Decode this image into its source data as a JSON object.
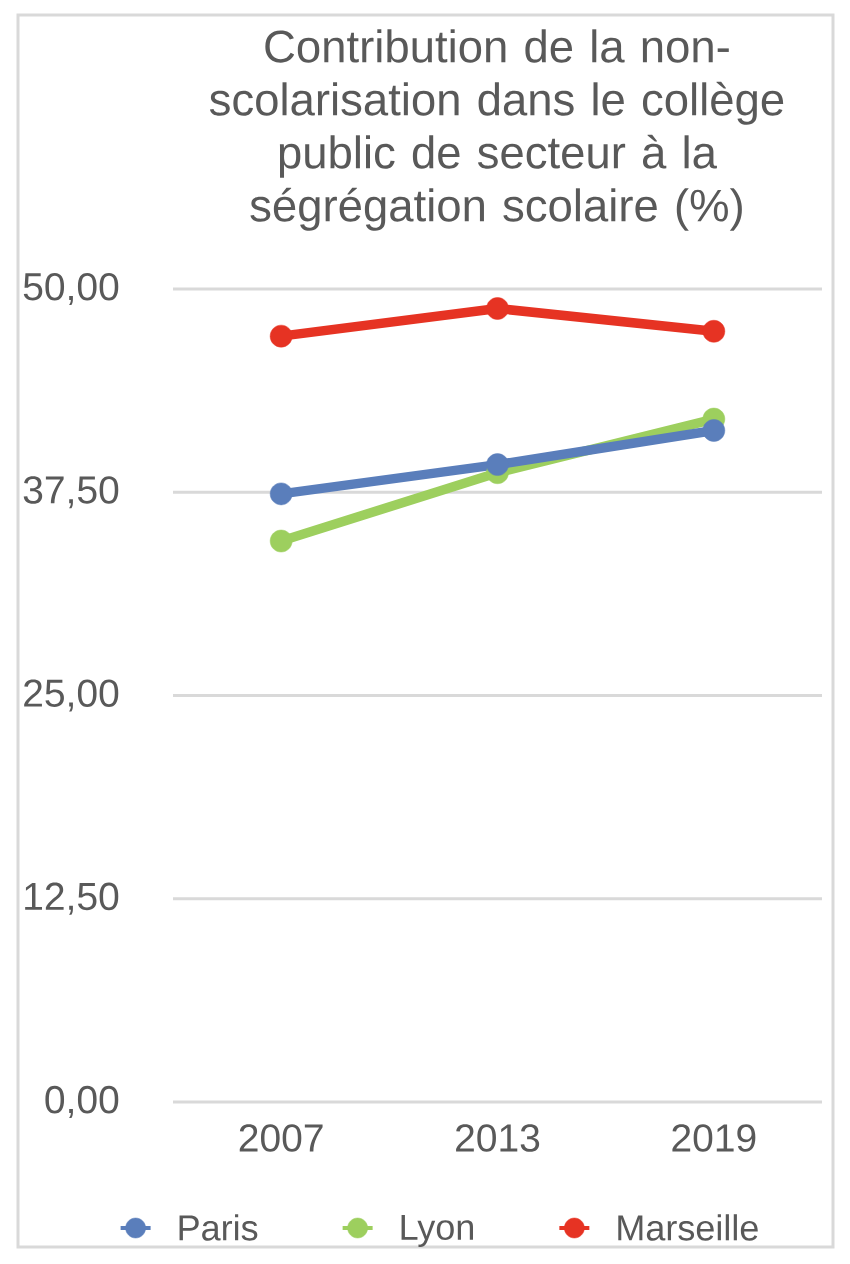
{
  "chart_data": {
    "type": "line",
    "title": "Contribution de la non-scolarisation dans le collège public de secteur à la ségrégation scolaire (%)",
    "categories": [
      "2007",
      "2013",
      "2019"
    ],
    "series": [
      {
        "name": "Paris",
        "color": "#5a7ebb",
        "values": [
          37.4,
          39.2,
          41.3
        ]
      },
      {
        "name": "Lyon",
        "color": "#9dcf5e",
        "values": [
          34.5,
          38.7,
          42.0
        ]
      },
      {
        "name": "Marseille",
        "color": "#e63323",
        "values": [
          47.1,
          48.8,
          47.4
        ]
      }
    ],
    "ylim": [
      0,
      50
    ],
    "yticks": [
      {
        "value": 0,
        "label": "0,00"
      },
      {
        "value": 12.5,
        "label": "12,50"
      },
      {
        "value": 25,
        "label": "25,00"
      },
      {
        "value": 37.5,
        "label": "37,50"
      },
      {
        "value": 50,
        "label": "50,00"
      }
    ],
    "grid": "y",
    "legend": "bottom",
    "marker": "circle"
  }
}
